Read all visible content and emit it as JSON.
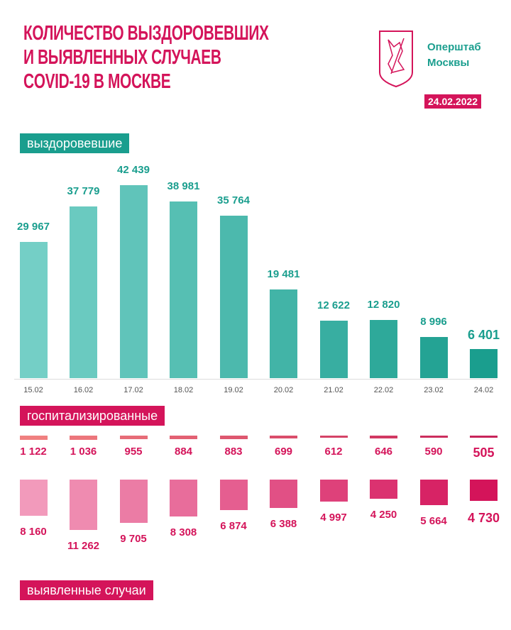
{
  "header": {
    "title_lines": [
      "КОЛИЧЕСТВО ВЫЗДОРОВЕВШИХ",
      "И ВЫЯВЛЕННЫХ СЛУЧАЕВ",
      "COVID-19 В МОСКВЕ"
    ],
    "brand_lines": [
      "Оперштаб",
      "Москвы"
    ],
    "date": "24.02.2022",
    "logo_icon": "moscow-coat-of-arms-icon"
  },
  "colors": {
    "teal_light": "#74cfc6",
    "teal_dark": "#1a9e8e",
    "pink_light": "#f29abb",
    "pink_dark": "#d4145a",
    "hosp_light": "#f08080",
    "hosp_dark": "#c8245a"
  },
  "chart_data": [
    {
      "type": "bar",
      "title": "выздоровевшие",
      "categories": [
        "15.02",
        "16.02",
        "17.02",
        "18.02",
        "19.02",
        "20.02",
        "21.02",
        "22.02",
        "23.02",
        "24.02"
      ],
      "values": [
        29967,
        37779,
        42439,
        38981,
        35764,
        19481,
        12622,
        12820,
        8996,
        6401
      ],
      "labels": [
        "29 967",
        "37 779",
        "42 439",
        "38 981",
        "35 764",
        "19 481",
        "12 622",
        "12 820",
        "8 996",
        "6 401"
      ]
    },
    {
      "type": "bar",
      "title": "госпитализированные",
      "categories": [
        "15.02",
        "16.02",
        "17.02",
        "18.02",
        "19.02",
        "20.02",
        "21.02",
        "22.02",
        "23.02",
        "24.02"
      ],
      "values": [
        1122,
        1036,
        955,
        884,
        883,
        699,
        612,
        646,
        590,
        505
      ],
      "labels": [
        "1 122",
        "1 036",
        "955",
        "884",
        "883",
        "699",
        "612",
        "646",
        "590",
        "505"
      ]
    },
    {
      "type": "bar",
      "title": "выявленные случаи",
      "categories": [
        "15.02",
        "16.02",
        "17.02",
        "18.02",
        "19.02",
        "20.02",
        "21.02",
        "22.02",
        "23.02",
        "24.02"
      ],
      "values": [
        8160,
        11262,
        9705,
        8308,
        6874,
        6388,
        4997,
        4250,
        5664,
        4730
      ],
      "labels": [
        "8 160",
        "11 262",
        "9 705",
        "8 308",
        "6 874",
        "6 388",
        "4 997",
        "4 250",
        "5 664",
        "4 730"
      ]
    }
  ]
}
